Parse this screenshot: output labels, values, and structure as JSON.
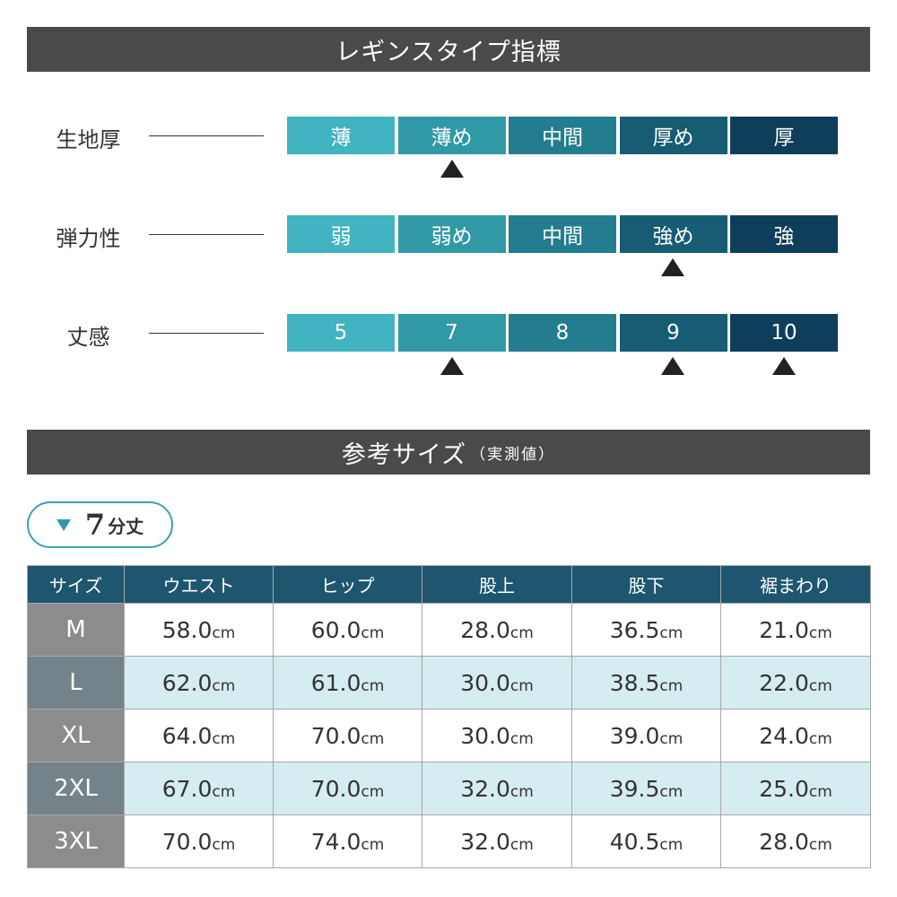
{
  "indicator_section": {
    "title": "レギンスタイプ指標",
    "rows": [
      {
        "label": "生地厚",
        "levels": [
          "薄",
          "薄め",
          "中間",
          "厚め",
          "厚"
        ],
        "selected_indices": [
          1
        ]
      },
      {
        "label": "弾力性",
        "levels": [
          "弱",
          "弱め",
          "中間",
          "強め",
          "強"
        ],
        "selected_indices": [
          3
        ]
      },
      {
        "label": "丈感",
        "levels": [
          "5",
          "7",
          "8",
          "9",
          "10"
        ],
        "selected_indices": [
          1,
          3,
          4
        ]
      }
    ]
  },
  "size_section": {
    "title": "参考サイズ",
    "title_sub": "（実測値）",
    "badge": {
      "number": "7",
      "unit": "分丈"
    },
    "table": {
      "headers": [
        "サイズ",
        "ウエスト",
        "ヒップ",
        "股上",
        "股下",
        "裾まわり"
      ],
      "unit": "cm",
      "rows": [
        {
          "size": "M",
          "values": [
            "58.0",
            "60.0",
            "28.0",
            "36.5",
            "21.0"
          ]
        },
        {
          "size": "L",
          "values": [
            "62.0",
            "61.0",
            "30.0",
            "38.5",
            "22.0"
          ]
        },
        {
          "size": "XL",
          "values": [
            "64.0",
            "70.0",
            "30.0",
            "39.0",
            "24.0"
          ]
        },
        {
          "size": "2XL",
          "values": [
            "67.0",
            "70.0",
            "32.0",
            "39.5",
            "25.0"
          ]
        },
        {
          "size": "3XL",
          "values": [
            "70.0",
            "74.0",
            "32.0",
            "40.5",
            "28.0"
          ]
        }
      ]
    }
  },
  "colors": {
    "banner": "#4a4a4a",
    "scale": [
      "#42b3c0",
      "#3199a6",
      "#247d8e",
      "#175c72",
      "#0f3e5a"
    ],
    "table_header": "#1e5670",
    "row_alt": "#d5ecf0"
  }
}
